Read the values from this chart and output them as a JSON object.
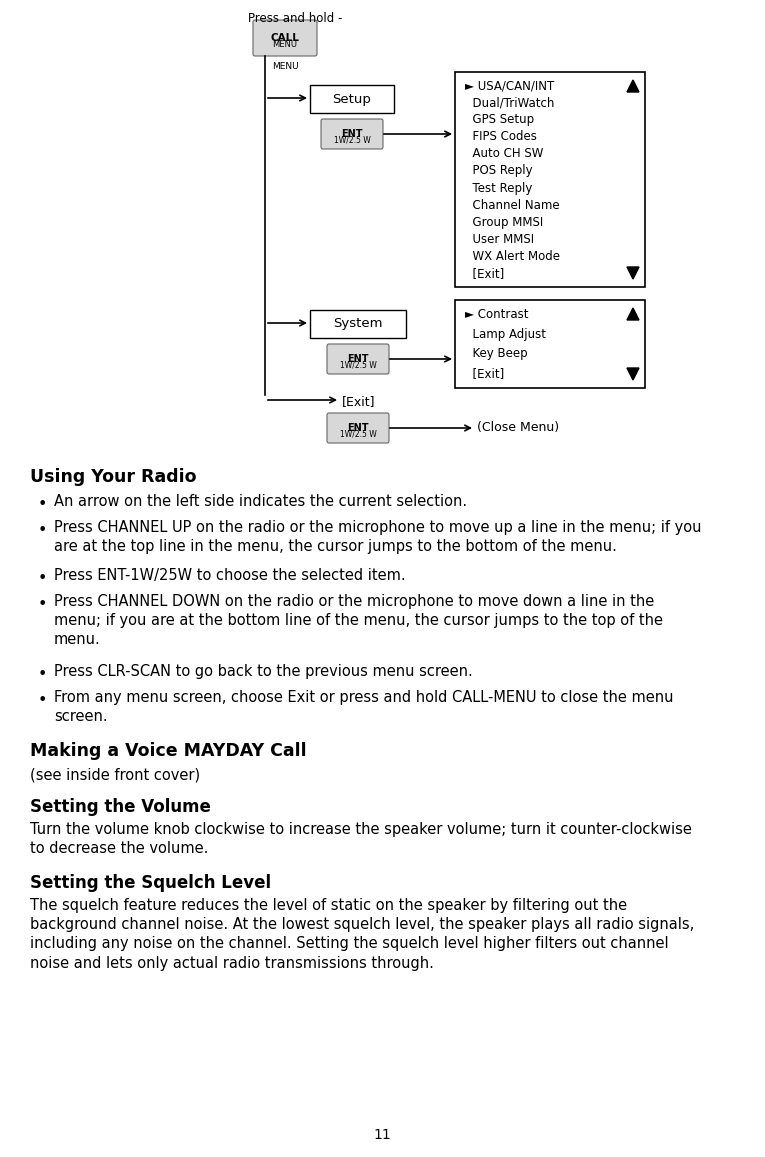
{
  "bg_color": "#ffffff",
  "page_number": "11",
  "press_and_hold_label": "Press and hold -",
  "setup_menu_items": [
    "USA/CAN/INT",
    "Dual/TriWatch",
    "GPS Setup",
    "FIPS Codes",
    "Auto CH SW",
    "POS Reply",
    "Test Reply",
    "Channel Name",
    "Group MMSI",
    "User MMSI",
    "WX Alert Mode",
    "[Exit]"
  ],
  "system_menu_items": [
    "Contrast",
    "Lamp Adjust",
    "Key Beep",
    "[Exit]"
  ],
  "exit_label": "[Exit]",
  "close_menu_label": "(Close Menu)",
  "section1_title": "Using Your Radio",
  "bullet1": "An arrow on the left side indicates the current selection.",
  "bullet2a": "Press ",
  "bullet2b": "CHANNEL UP",
  "bullet2c": " on the radio or the microphone to move up a line in the menu; if you\nare at the top line in the menu, the cursor jumps to the bottom of the menu.",
  "bullet3a": "Press ",
  "bullet3b": "ENT-1W/25W",
  "bullet3c": " to choose the selected item.",
  "bullet4a": "Press ",
  "bullet4b": "CHANNEL DOWN",
  "bullet4c": " on the radio or the microphone to move down a line in the\nmenu; if you are at the bottom line of the menu, the cursor jumps to the top of the\nmenu.",
  "bullet5a": "Press ",
  "bullet5b": "CLR-SCAN",
  "bullet5c": " to go back to the previous menu screen.",
  "bullet6a": "From any menu screen, choose ",
  "bullet6b": "Exit",
  "bullet6c": " or press and hold ",
  "bullet6d": "CALL-MENU",
  "bullet6e": " to close the menu\nscreen.",
  "section2_title": "Making a Voice MAYDAY Call",
  "section2_subtitle": "(see inside front cover)",
  "section3_title": "Setting the Volume",
  "section3_text": "Turn the volume knob clockwise to increase the speaker volume; turn it counter-clockwise\nto decrease the volume.",
  "section4_title": "Setting the Squelch Level",
  "section4_text": "The squelch feature reduces the level of static on the speaker by filtering out the\nbackground channel noise. At the lowest squelch level, the speaker plays all radio signals,\nincluding any noise on the channel. Setting the squelch level higher filters out channel\nnoise and lets only actual radio transmissions through."
}
